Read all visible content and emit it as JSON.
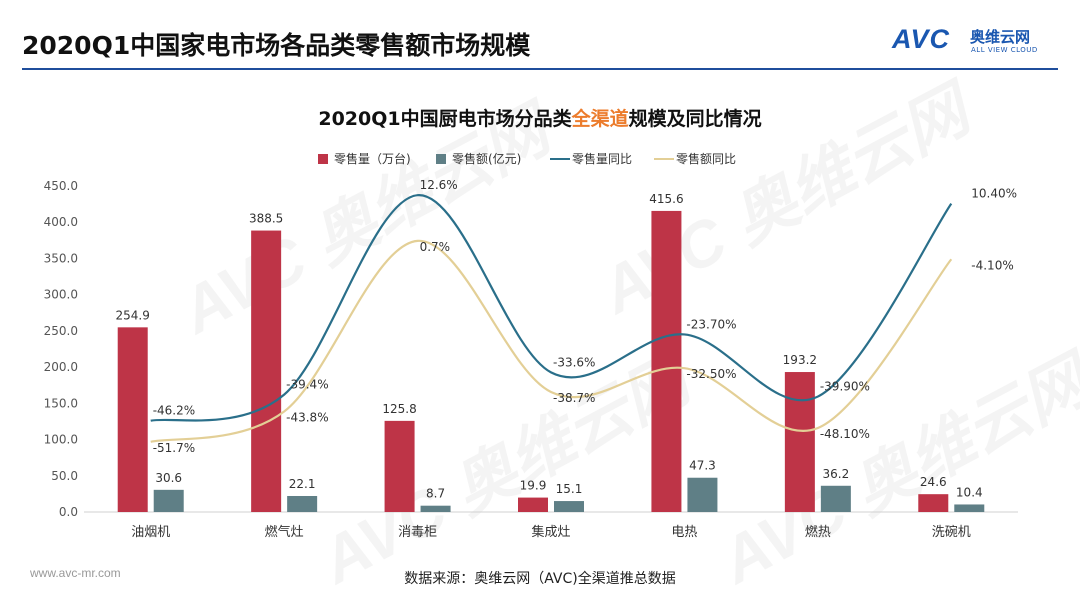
{
  "page": {
    "slide_title": "2020Q1中国家电市场各品类零售额市场规模",
    "logo_avc": "AVC",
    "logo_cn": "奥维云网",
    "logo_en": "ALL VIEW CLOUD",
    "chart_title_pre": "2020Q1中国厨电市场分品类",
    "chart_title_highlight": "全渠道",
    "chart_title_post": "规模及同比情况",
    "footer_url": "www.avc-mr.com",
    "footer_source": "数据来源：奥维云网（AVC)全渠道推总数据",
    "watermark_text": "AVC 奥维云网"
  },
  "colors": {
    "bar_volume": "#be3447",
    "bar_amount": "#5f7f86",
    "line_volume": "#2a6f8a",
    "line_amount": "#e3cf96",
    "title_rule": "#1f4e9c",
    "highlight": "#ec7c2c"
  },
  "chart_data": {
    "type": "bar",
    "categories": [
      "油烟机",
      "燃气灶",
      "消毒柜",
      "集成灶",
      "电热",
      "燃热",
      "洗碗机"
    ],
    "ylim": [
      0,
      450
    ],
    "yticks": [
      "0.0",
      "50.0",
      "100.0",
      "150.0",
      "200.0",
      "250.0",
      "300.0",
      "350.0",
      "400.0",
      "450.0"
    ],
    "legend_position": "top",
    "grid": false,
    "series": [
      {
        "name": "零售量（万台)",
        "kind": "bar",
        "values": [
          254.9,
          388.5,
          125.8,
          19.9,
          415.6,
          193.2,
          24.6
        ],
        "labels": [
          "254.9",
          "388.5",
          "125.8",
          "19.9",
          "415.6",
          "193.2",
          "24.6"
        ]
      },
      {
        "name": "零售额(亿元)",
        "kind": "bar",
        "values": [
          30.6,
          22.1,
          8.7,
          15.1,
          47.3,
          36.2,
          10.4
        ],
        "labels": [
          "30.6",
          "22.1",
          "8.7",
          "15.1",
          "47.3",
          "36.2",
          "10.4"
        ]
      },
      {
        "name": "零售量同比",
        "kind": "line",
        "secondary_axis": true,
        "values": [
          -46.2,
          -39.4,
          12.6,
          -33.6,
          -23.7,
          -39.9,
          10.4
        ],
        "labels": [
          "-46.2%",
          "-39.4%",
          "12.6%",
          "-33.6%",
          "-23.70%",
          "-39.90%",
          "10.40%"
        ]
      },
      {
        "name": "零售额同比",
        "kind": "line",
        "secondary_axis": true,
        "values": [
          -51.7,
          -43.8,
          0.7,
          -38.7,
          -32.5,
          -48.1,
          -4.1
        ],
        "labels": [
          "-51.7%",
          "-43.8%",
          "0.7%",
          "-38.7%",
          "-32.50%",
          "-48.10%",
          "-4.10%"
        ]
      }
    ]
  }
}
